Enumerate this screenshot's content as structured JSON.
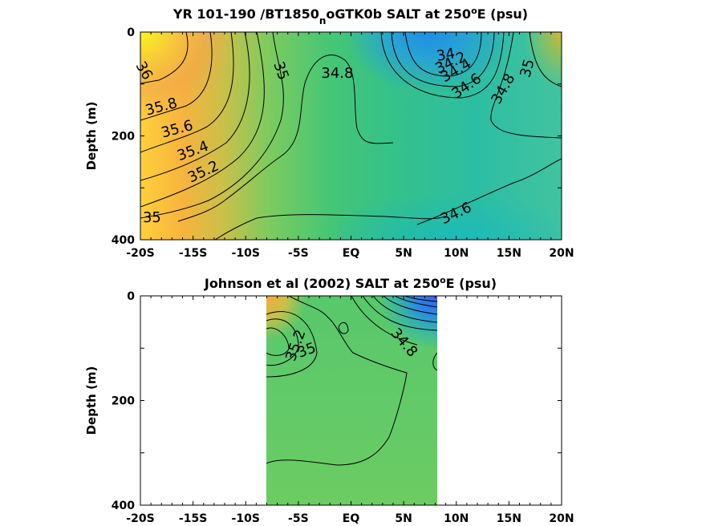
{
  "chart_data": [
    {
      "type": "heatmap",
      "title_parts": [
        "YR 101-190 /BT1850",
        "n",
        "oGTK0b SALT at 250",
        "o",
        "E (psu)"
      ],
      "ylabel": "Depth (m)",
      "xticks": [
        "-20S",
        "-15S",
        "-10S",
        "-5S",
        "EQ",
        "5N",
        "10N",
        "15N",
        "20N"
      ],
      "yticks": [
        "0",
        "200",
        "400"
      ],
      "xlim": [
        -20,
        20
      ],
      "ylim": [
        0,
        400
      ],
      "contour_labels": [
        {
          "text": "36",
          "lat": -19.7,
          "depth": 75,
          "rot": 60
        },
        {
          "text": "35",
          "lat": -6.7,
          "depth": 75,
          "rot": 70
        },
        {
          "text": "34.8",
          "lat": -1.3,
          "depth": 80,
          "rot": 0
        },
        {
          "text": "34",
          "lat": 9,
          "depth": 45,
          "rot": -10
        },
        {
          "text": "34.2",
          "lat": 9.5,
          "depth": 60,
          "rot": -25
        },
        {
          "text": "34.4",
          "lat": 10,
          "depth": 75,
          "rot": -30
        },
        {
          "text": "34.6",
          "lat": 11,
          "depth": 105,
          "rot": -35
        },
        {
          "text": "34.8",
          "lat": 14.5,
          "depth": 110,
          "rot": -60
        },
        {
          "text": "35",
          "lat": 16.8,
          "depth": 70,
          "rot": -75
        },
        {
          "text": "35.8",
          "lat": -18,
          "depth": 145,
          "rot": -15
        },
        {
          "text": "35.6",
          "lat": -16.5,
          "depth": 188,
          "rot": -15
        },
        {
          "text": "35.4",
          "lat": -15,
          "depth": 230,
          "rot": -20
        },
        {
          "text": "35.2",
          "lat": -14,
          "depth": 270,
          "rot": -25
        },
        {
          "text": "35",
          "lat": -18.9,
          "depth": 358,
          "rot": 0
        },
        {
          "text": "34.6",
          "lat": 10,
          "depth": 350,
          "rot": -25
        }
      ]
    },
    {
      "type": "heatmap",
      "title_parts": [
        "Johnson et al (2002) SALT at 250",
        "o",
        "E (psu)"
      ],
      "ylabel": "Depth (m)",
      "xticks": [
        "-20S",
        "-15S",
        "-10S",
        "-5S",
        "EQ",
        "5N",
        "10N",
        "15N",
        "20N"
      ],
      "yticks": [
        "0",
        "200",
        "400"
      ],
      "xlim": [
        -20,
        20
      ],
      "ylim": [
        0,
        400
      ],
      "data_lat_range": [
        -8,
        8.2
      ],
      "contour_labels": [
        {
          "text": "35.2",
          "lat": -5.2,
          "depth": 95,
          "rot": -70
        },
        {
          "text": "35",
          "lat": -4.2,
          "depth": 105,
          "rot": -20
        },
        {
          "text": "34.8",
          "lat": 5,
          "depth": 90,
          "rot": 50
        }
      ]
    }
  ]
}
